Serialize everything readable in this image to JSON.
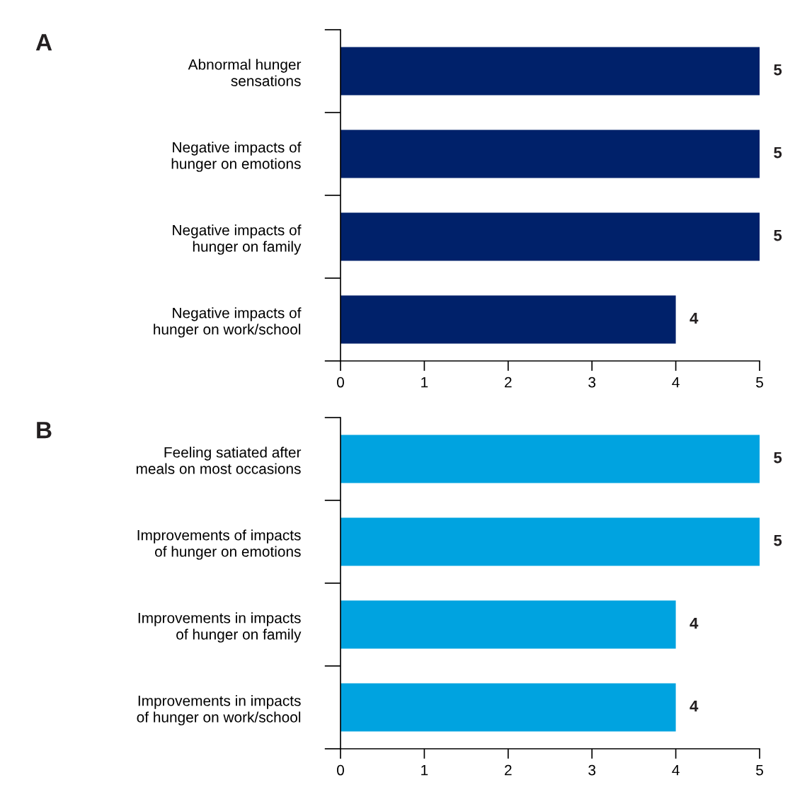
{
  "chart_data": [
    {
      "type": "bar",
      "orientation": "horizontal",
      "title": "A",
      "categories": [
        "Abnormal hunger\nsensations",
        "Negative impacts of\nhunger on emotions",
        "Negative impacts of\nhunger on family",
        "Negative impacts of\nhunger on work/school"
      ],
      "values": [
        5,
        5,
        5,
        4
      ],
      "color": "#00216a",
      "xlim": [
        0,
        5
      ],
      "xticks": [
        0,
        1,
        2,
        3,
        4,
        5
      ],
      "data_labels": true,
      "grid": false,
      "legend": false
    },
    {
      "type": "bar",
      "orientation": "horizontal",
      "title": "B",
      "categories": [
        "Feeling satiated after\nmeals on most occasions",
        "Improvements of impacts\nof hunger on emotions",
        "Improvements in impacts\nof hunger on family",
        "Improvements in impacts\nof hunger on work/school"
      ],
      "values": [
        5,
        5,
        4,
        4
      ],
      "color": "#00a3e0",
      "xlim": [
        0,
        5
      ],
      "xticks": [
        0,
        1,
        2,
        3,
        4,
        5
      ],
      "data_labels": true,
      "grid": false,
      "legend": false
    }
  ]
}
